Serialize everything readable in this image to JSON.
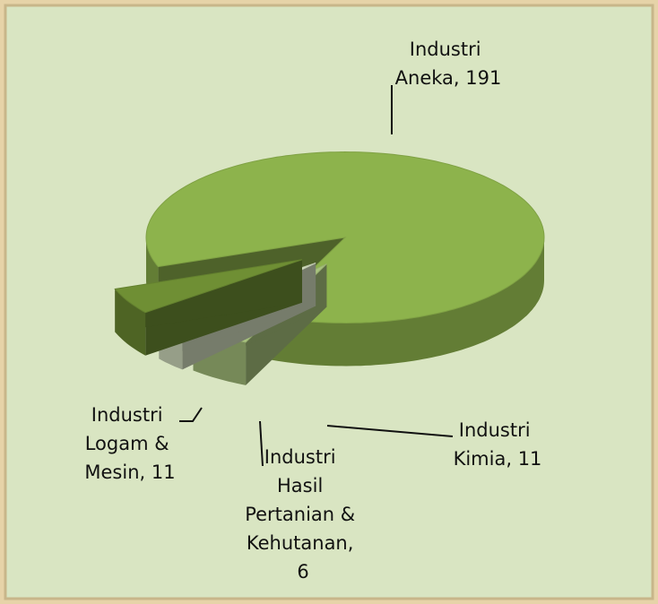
{
  "chart_data": {
    "type": "pie3d",
    "values": [
      191,
      11,
      6,
      11
    ],
    "value_labels": [
      "Industri Aneka, 191",
      "Industri Kimia, 11",
      "Industri Hasil Pertanian & Kehutanan, 6",
      "Industri Logam & Mesin, 11"
    ],
    "colors": [
      "#8db34c",
      "#a9c47e",
      "#d6e2c2",
      "#6f8f34"
    ]
  }
}
